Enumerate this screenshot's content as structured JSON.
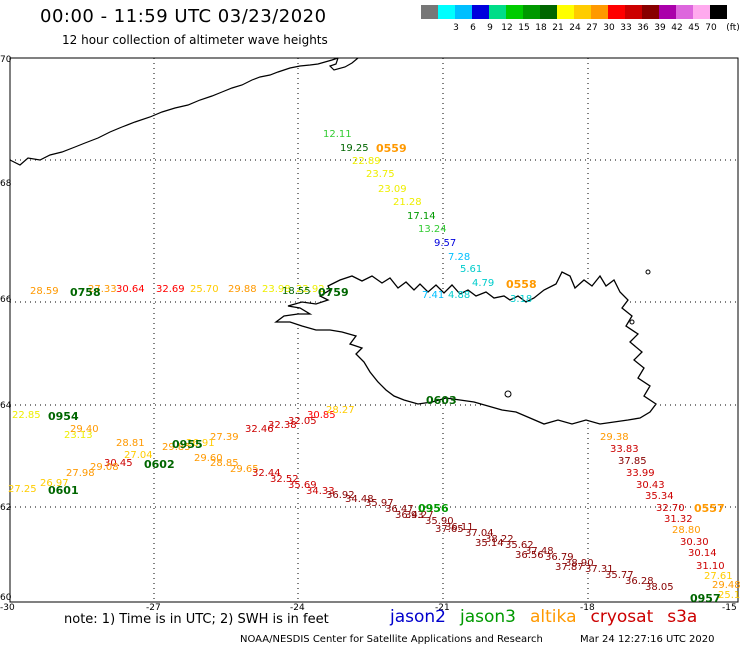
{
  "header": {
    "title": "00:00 - 11:59 UTC 03/23/2020",
    "subtitle": "12 hour collection of altimeter wave heights"
  },
  "colorbar": {
    "unit_label": "(ft)",
    "levels": [
      {
        "label": "",
        "color": "#777777"
      },
      {
        "label": "3",
        "color": "#00ffff"
      },
      {
        "label": "6",
        "color": "#00bfff"
      },
      {
        "label": "9",
        "color": "#0000dd"
      },
      {
        "label": "12",
        "color": "#00dd88"
      },
      {
        "label": "15",
        "color": "#00cc00"
      },
      {
        "label": "18",
        "color": "#009900"
      },
      {
        "label": "21",
        "color": "#006600"
      },
      {
        "label": "24",
        "color": "#ffff00"
      },
      {
        "label": "27",
        "color": "#ffcc00"
      },
      {
        "label": "30",
        "color": "#ff9900"
      },
      {
        "label": "33",
        "color": "#ff0000"
      },
      {
        "label": "36",
        "color": "#cc0000"
      },
      {
        "label": "39",
        "color": "#880000"
      },
      {
        "label": "42",
        "color": "#aa00aa"
      },
      {
        "label": "45",
        "color": "#dd66dd"
      },
      {
        "label": "70",
        "color": "#ffaaee"
      },
      {
        "label": "",
        "color": "#000000"
      }
    ]
  },
  "map": {
    "lat_labels": [
      "70",
      "68",
      "66",
      "64",
      "62",
      "60"
    ],
    "lon_labels": [
      "-30",
      "-27",
      "-24",
      "-21",
      "-18",
      "-15"
    ]
  },
  "tracks": [
    {
      "id": "t1",
      "points": [
        {
          "text": "12.11",
          "color": "#33cc33"
        },
        {
          "text": "19.25",
          "color": "#006600"
        },
        {
          "text": "22.89",
          "color": "#eeee00"
        },
        {
          "text": "23.75",
          "color": "#eeee00"
        },
        {
          "text": "23.09",
          "color": "#eeee00"
        },
        {
          "text": "21.28",
          "color": "#eeee00"
        },
        {
          "text": "17.14",
          "color": "#009900"
        },
        {
          "text": "13.24",
          "color": "#33cc33"
        },
        {
          "text": "9.57",
          "color": "#0000dd"
        },
        {
          "text": "7.28",
          "color": "#00bfff"
        },
        {
          "text": "5.61",
          "color": "#00cccc"
        },
        {
          "text": "4.79",
          "color": "#00cccc"
        },
        {
          "text": "7.41",
          "color": "#00bfff"
        },
        {
          "text": "4.88",
          "color": "#00cccc"
        },
        {
          "text": "3.18",
          "color": "#00cccc"
        }
      ]
    },
    {
      "id": "t2",
      "points": [
        {
          "text": "28.59",
          "color": "#ff9900"
        },
        {
          "text": "27.33",
          "color": "#ff9900"
        },
        {
          "text": "30.64",
          "color": "#ff0000"
        },
        {
          "text": "32.69",
          "color": "#ff0000"
        },
        {
          "text": "25.70",
          "color": "#ffcc00"
        },
        {
          "text": "29.88",
          "color": "#ff9900"
        },
        {
          "text": "23.98",
          "color": "#eeee00"
        },
        {
          "text": "22.92",
          "color": "#eeee00"
        },
        {
          "text": "18.55",
          "color": "#006600"
        }
      ]
    },
    {
      "id": "t3",
      "points": [
        {
          "text": "32.46",
          "color": "#cc0000"
        },
        {
          "text": "32.38",
          "color": "#cc0000"
        },
        {
          "text": "32.05",
          "color": "#cc0000"
        },
        {
          "text": "30.85",
          "color": "#ff0000"
        },
        {
          "text": "28.27",
          "color": "#ffcc00"
        },
        {
          "text": "27.39",
          "color": "#ff9900"
        },
        {
          "text": "26.91",
          "color": "#ffcc00"
        },
        {
          "text": "29.85",
          "color": "#ff9900"
        },
        {
          "text": "28.85",
          "color": "#ff9900"
        },
        {
          "text": "29.65",
          "color": "#ff9900"
        },
        {
          "text": "29.60",
          "color": "#ff9900"
        }
      ]
    },
    {
      "id": "t4",
      "points": [
        {
          "text": "22.85",
          "color": "#eeee00"
        },
        {
          "text": "23.13",
          "color": "#eeee00"
        },
        {
          "text": "29.40",
          "color": "#ff9900"
        },
        {
          "text": "28.81",
          "color": "#ff9900"
        },
        {
          "text": "27.04",
          "color": "#ffcc00"
        },
        {
          "text": "30.45",
          "color": "#cc0000"
        },
        {
          "text": "29.08",
          "color": "#ff9900"
        },
        {
          "text": "27.98",
          "color": "#ff9900"
        },
        {
          "text": "26.97",
          "color": "#ffcc00"
        },
        {
          "text": "27.25",
          "color": "#ffcc00"
        }
      ]
    },
    {
      "id": "t5",
      "points": [
        {
          "text": "32.44",
          "color": "#cc0000"
        },
        {
          "text": "32.52",
          "color": "#cc0000"
        },
        {
          "text": "35.69",
          "color": "#cc0000"
        },
        {
          "text": "34.33",
          "color": "#cc0000"
        },
        {
          "text": "36.92",
          "color": "#880000"
        },
        {
          "text": "34.48",
          "color": "#880000"
        },
        {
          "text": "35.97",
          "color": "#880000"
        },
        {
          "text": "36.47",
          "color": "#880000"
        },
        {
          "text": "34.27",
          "color": "#880000"
        },
        {
          "text": "35.90",
          "color": "#880000"
        },
        {
          "text": "36.11",
          "color": "#880000"
        },
        {
          "text": "37.04",
          "color": "#880000"
        },
        {
          "text": "38.22",
          "color": "#880000"
        },
        {
          "text": "35.62",
          "color": "#880000"
        },
        {
          "text": "37.48",
          "color": "#880000"
        },
        {
          "text": "36.79",
          "color": "#880000"
        },
        {
          "text": "38.90",
          "color": "#880000"
        },
        {
          "text": "37.31",
          "color": "#880000"
        },
        {
          "text": "35.77",
          "color": "#880000"
        },
        {
          "text": "36.28",
          "color": "#880000"
        },
        {
          "text": "38.05",
          "color": "#880000"
        },
        {
          "text": "36.93",
          "color": "#880000"
        },
        {
          "text": "37.65",
          "color": "#880000"
        },
        {
          "text": "35.14",
          "color": "#880000"
        },
        {
          "text": "36.56",
          "color": "#880000"
        },
        {
          "text": "37.87",
          "color": "#880000"
        }
      ]
    },
    {
      "id": "t6",
      "points": [
        {
          "text": "29.38",
          "color": "#ff9900"
        },
        {
          "text": "33.83",
          "color": "#cc0000"
        },
        {
          "text": "37.85",
          "color": "#880000"
        },
        {
          "text": "33.99",
          "color": "#cc0000"
        },
        {
          "text": "30.43",
          "color": "#cc0000"
        },
        {
          "text": "35.34",
          "color": "#cc0000"
        },
        {
          "text": "32.70",
          "color": "#cc0000"
        },
        {
          "text": "31.32",
          "color": "#cc0000"
        },
        {
          "text": "28.80",
          "color": "#ff9900"
        },
        {
          "text": "30.30",
          "color": "#cc0000"
        },
        {
          "text": "30.14",
          "color": "#cc0000"
        },
        {
          "text": "31.10",
          "color": "#cc0000"
        },
        {
          "text": "27.61",
          "color": "#ffcc00"
        },
        {
          "text": "29.48",
          "color": "#ff9900"
        },
        {
          "text": "25.1",
          "color": "#ffcc00"
        }
      ]
    }
  ],
  "time_labels": [
    {
      "text": "0559",
      "color": "#ff9900"
    },
    {
      "text": "0558",
      "color": "#ff9900"
    },
    {
      "text": "0758",
      "color": "#006600"
    },
    {
      "text": "0759",
      "color": "#006600"
    },
    {
      "text": "0603",
      "color": "#006600"
    },
    {
      "text": "0954",
      "color": "#006600"
    },
    {
      "text": "0955",
      "color": "#006600"
    },
    {
      "text": "0602",
      "color": "#006600"
    },
    {
      "text": "0601",
      "color": "#006600"
    },
    {
      "text": "0557",
      "color": "#ff9900"
    },
    {
      "text": "0957",
      "color": "#006600"
    },
    {
      "text": "0956",
      "color": "#009900"
    }
  ],
  "footer": {
    "note": "note: 1) Time is in UTC; 2) SWH is in feet",
    "satellites": [
      {
        "name": "jason2",
        "color": "#0000cc"
      },
      {
        "name": "jason3",
        "color": "#009900"
      },
      {
        "name": "altika",
        "color": "#ff9900"
      },
      {
        "name": "cryosat",
        "color": "#cc0000"
      },
      {
        "name": "s3a",
        "color": "#cc0000"
      }
    ],
    "credit": "NOAA/NESDIS Center for Satellite Applications and Research",
    "timestamp": "Mar 24 12:27:16 UTC 2020"
  }
}
